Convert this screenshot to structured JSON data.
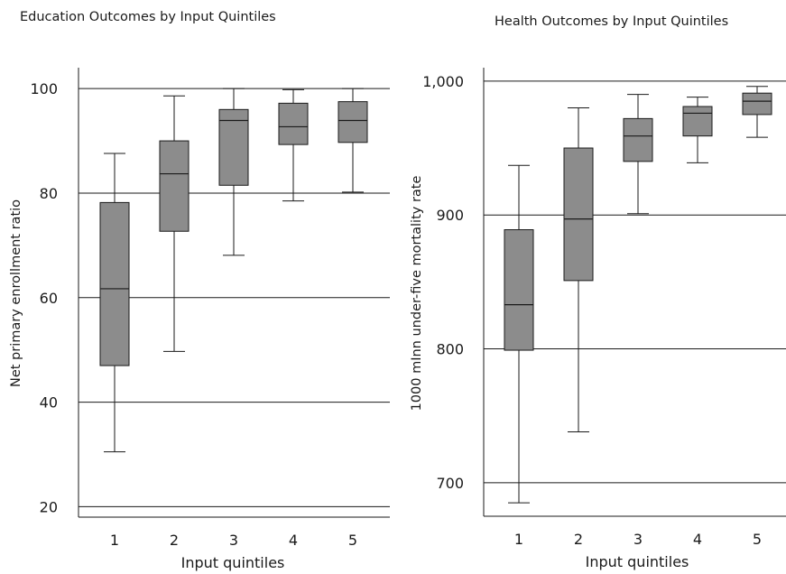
{
  "chart_data": [
    {
      "type": "box",
      "title": "Education Outcomes by Input Quintiles",
      "xlabel": "Input quintiles",
      "ylabel": "Net primary enrollment ratio",
      "categories": [
        "1",
        "2",
        "3",
        "4",
        "5"
      ],
      "ylim": [
        18,
        104
      ],
      "yticks": [
        20,
        40,
        60,
        80,
        100
      ],
      "ytick_labels": [
        "20",
        "40",
        "60",
        "80",
        "100"
      ],
      "grid": "horizontal",
      "boxes": [
        {
          "category": "1",
          "min": 30.5,
          "q1": 47.0,
          "median": 61.7,
          "q3": 78.2,
          "max": 87.6
        },
        {
          "category": "2",
          "min": 49.7,
          "q1": 72.7,
          "median": 83.7,
          "q3": 90.0,
          "max": 98.6
        },
        {
          "category": "3",
          "min": 68.1,
          "q1": 81.5,
          "median": 93.9,
          "q3": 96.0,
          "max": 100.0
        },
        {
          "category": "4",
          "min": 78.5,
          "q1": 89.3,
          "median": 92.7,
          "q3": 97.2,
          "max": 99.8
        },
        {
          "category": "5",
          "min": 80.2,
          "q1": 89.7,
          "median": 93.9,
          "q3": 97.5,
          "max": 100.0
        }
      ],
      "box_color": "#8c8c8c"
    },
    {
      "type": "box",
      "title": "Health Outcomes by Input Quintiles",
      "xlabel": "Input quintiles",
      "ylabel": "1000 mInn under-five mortality rate",
      "categories": [
        "1",
        "2",
        "3",
        "4",
        "5"
      ],
      "ylim": [
        675,
        1010
      ],
      "yticks": [
        700,
        800,
        900,
        1000
      ],
      "ytick_labels": [
        "700",
        "800",
        "900",
        "1,000"
      ],
      "grid": "horizontal",
      "boxes": [
        {
          "category": "1",
          "min": 685,
          "q1": 799,
          "median": 833,
          "q3": 889,
          "max": 937
        },
        {
          "category": "2",
          "min": 738,
          "q1": 851,
          "median": 897,
          "q3": 950,
          "max": 980
        },
        {
          "category": "3",
          "min": 901,
          "q1": 940,
          "median": 959,
          "q3": 972,
          "max": 990
        },
        {
          "category": "4",
          "min": 939,
          "q1": 959,
          "median": 976,
          "q3": 981,
          "max": 988
        },
        {
          "category": "5",
          "min": 958,
          "q1": 975,
          "median": 985,
          "q3": 991,
          "max": 996
        }
      ],
      "box_color": "#8c8c8c"
    }
  ]
}
